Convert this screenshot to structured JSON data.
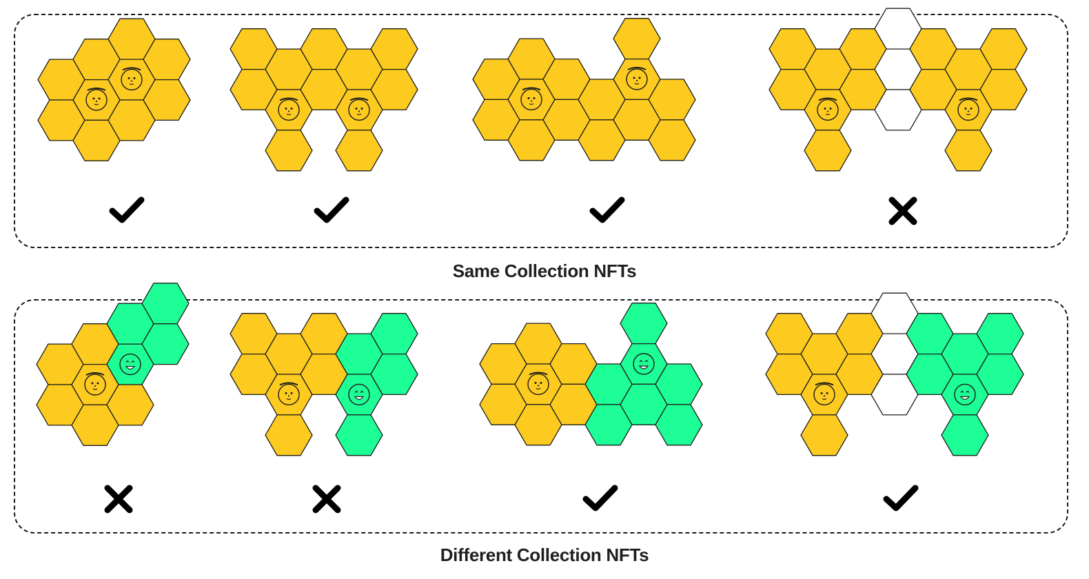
{
  "colors": {
    "gold": "#FDCB20",
    "green": "#1EFE96",
    "empty": "#FFFFFF",
    "stroke": "#1a1a1a"
  },
  "sections": [
    {
      "id": "same",
      "title": "Same Collection NFTs",
      "examples": [
        {
          "valid": true,
          "result_icon": "check-icon"
        },
        {
          "valid": true,
          "result_icon": "check-icon"
        },
        {
          "valid": true,
          "result_icon": "check-icon"
        },
        {
          "valid": false,
          "result_icon": "cross-icon"
        }
      ]
    },
    {
      "id": "diff",
      "title": "Different Collection NFTs",
      "examples": [
        {
          "valid": false,
          "result_icon": "cross-icon"
        },
        {
          "valid": false,
          "result_icon": "cross-icon"
        },
        {
          "valid": true,
          "result_icon": "check-icon"
        },
        {
          "valid": true,
          "result_icon": "check-icon"
        }
      ]
    }
  ]
}
